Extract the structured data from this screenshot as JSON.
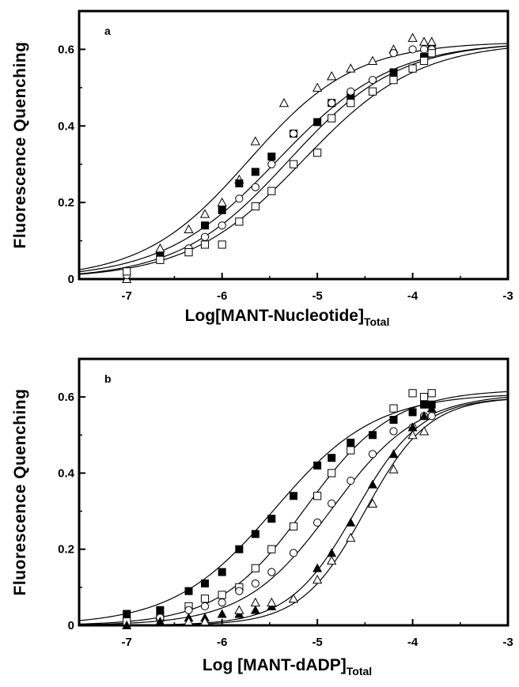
{
  "chart_data": [
    {
      "type": "scatter",
      "panel_label": "a",
      "xlabel": "Log[MANT-Nucleotide]",
      "xlabel_subscript": "Total",
      "ylabel": "Fluorescence Quenching",
      "xlim": [
        -7.5,
        -3
      ],
      "ylim": [
        0,
        0.7
      ],
      "xticks": [
        -7,
        -6,
        -5,
        -4,
        -3
      ],
      "yticks": [
        0,
        0.2,
        0.4,
        0.6
      ],
      "ytick_labels": [
        "0",
        "0.2",
        "0.4",
        "0.6"
      ],
      "grid": false,
      "legend": "none",
      "series": [
        {
          "marker": "open-triangle",
          "x": [
            -7.0,
            -6.65,
            -6.35,
            -6.18,
            -6.0,
            -5.82,
            -5.65,
            -5.35,
            -5.0,
            -4.85,
            -4.65,
            -4.42,
            -4.2,
            -4.0,
            -3.88,
            -3.8
          ],
          "y": [
            0.0,
            0.08,
            0.13,
            0.17,
            0.2,
            0.26,
            0.36,
            0.46,
            0.5,
            0.53,
            0.55,
            0.57,
            0.6,
            0.63,
            0.62,
            0.62
          ],
          "fit": {
            "top": 0.62,
            "log_k50": -5.72,
            "hill": 0.78
          }
        },
        {
          "marker": "filled-square",
          "x": [
            -6.65,
            -6.18,
            -6.0,
            -5.82,
            -5.65,
            -5.48,
            -5.25,
            -5.0,
            -4.85,
            -4.65,
            -4.2,
            -3.88,
            -3.8
          ],
          "y": [
            0.06,
            0.14,
            0.18,
            0.25,
            0.28,
            0.32,
            0.38,
            0.41,
            0.46,
            0.48,
            0.54,
            0.58,
            0.6
          ],
          "fit": {
            "top": 0.62,
            "log_k50": -5.42,
            "hill": 0.72
          }
        },
        {
          "marker": "open-circle",
          "x": [
            -7.0,
            -6.65,
            -6.35,
            -6.18,
            -6.0,
            -5.82,
            -5.65,
            -5.48,
            -5.25,
            -4.85,
            -4.65,
            -4.42,
            -4.2,
            -4.0,
            -3.88,
            -3.8
          ],
          "y": [
            0.01,
            0.05,
            0.08,
            0.11,
            0.14,
            0.21,
            0.24,
            0.3,
            0.38,
            0.46,
            0.49,
            0.52,
            0.59,
            0.6,
            0.6,
            0.6
          ],
          "fit": {
            "top": 0.62,
            "log_k50": -5.3,
            "hill": 0.75
          }
        },
        {
          "marker": "open-square",
          "x": [
            -7.0,
            -6.65,
            -6.35,
            -6.18,
            -6.0,
            -5.82,
            -5.65,
            -5.48,
            -5.25,
            -5.0,
            -4.85,
            -4.65,
            -4.42,
            -4.2,
            -4.0,
            -3.88,
            -3.8
          ],
          "y": [
            0.02,
            0.05,
            0.07,
            0.09,
            0.09,
            0.15,
            0.19,
            0.23,
            0.3,
            0.33,
            0.42,
            0.46,
            0.49,
            0.52,
            0.55,
            0.57,
            0.59
          ],
          "fit": {
            "top": 0.62,
            "log_k50": -5.15,
            "hill": 0.72
          }
        }
      ]
    },
    {
      "type": "scatter",
      "panel_label": "b",
      "xlabel": "Log  [MANT-dADP]",
      "xlabel_subscript": "Total",
      "ylabel": "Fluorescence Quenching",
      "xlim": [
        -7.5,
        -3
      ],
      "ylim": [
        0,
        0.7
      ],
      "xticks": [
        -7,
        -6,
        -5,
        -4,
        -3
      ],
      "yticks": [
        0,
        0.2,
        0.4,
        0.6
      ],
      "ytick_labels": [
        "0",
        "0.2",
        "0.4",
        "0.6"
      ],
      "grid": false,
      "legend": "none",
      "series": [
        {
          "marker": "filled-square",
          "x": [
            -7.0,
            -6.65,
            -6.35,
            -6.18,
            -6.0,
            -5.82,
            -5.65,
            -5.48,
            -5.25,
            -5.0,
            -4.85,
            -4.65,
            -4.42,
            -4.2,
            -4.0,
            -3.88,
            -3.8
          ],
          "y": [
            0.03,
            0.04,
            0.09,
            0.11,
            0.14,
            0.2,
            0.24,
            0.28,
            0.34,
            0.42,
            0.44,
            0.48,
            0.5,
            0.54,
            0.56,
            0.58,
            0.58
          ],
          "fit": {
            "top": 0.61,
            "log_k50": -5.45,
            "hill": 0.82
          }
        },
        {
          "marker": "open-square",
          "x": [
            -7.0,
            -6.65,
            -6.35,
            -6.18,
            -6.0,
            -5.82,
            -5.65,
            -5.48,
            -5.25,
            -5.0,
            -4.85,
            -4.65,
            -4.2,
            -4.0,
            -3.88,
            -3.8
          ],
          "y": [
            0.01,
            0.02,
            0.05,
            0.07,
            0.08,
            0.1,
            0.15,
            0.2,
            0.26,
            0.34,
            0.4,
            0.46,
            0.57,
            0.61,
            0.6,
            0.61
          ],
          "fit": {
            "top": 0.62,
            "log_k50": -5.12,
            "hill": 0.95
          }
        },
        {
          "marker": "open-circle",
          "x": [
            -6.65,
            -6.35,
            -6.18,
            -6.0,
            -5.82,
            -5.65,
            -5.48,
            -5.25,
            -5.0,
            -4.85,
            -4.65,
            -4.42,
            -4.2,
            -4.0,
            -3.88,
            -3.8
          ],
          "y": [
            0.02,
            0.04,
            0.05,
            0.06,
            0.09,
            0.11,
            0.14,
            0.19,
            0.27,
            0.32,
            0.38,
            0.45,
            0.51,
            0.52,
            0.55,
            0.55
          ],
          "fit": {
            "top": 0.61,
            "log_k50": -4.85,
            "hill": 0.95
          }
        },
        {
          "marker": "filled-triangle",
          "x": [
            -7.0,
            -6.65,
            -6.35,
            -6.18,
            -6.0,
            -5.82,
            -5.65,
            -5.48,
            -5.25,
            -5.0,
            -4.85,
            -4.65,
            -4.42,
            -4.2,
            -4.0,
            -3.88,
            -3.8
          ],
          "y": [
            0.0,
            0.01,
            0.02,
            0.02,
            0.03,
            0.03,
            0.04,
            0.05,
            0.07,
            0.15,
            0.19,
            0.27,
            0.37,
            0.45,
            0.52,
            0.55,
            0.57
          ],
          "fit": {
            "top": 0.6,
            "log_k50": -4.6,
            "hill": 1.25
          }
        },
        {
          "marker": "open-triangle",
          "x": [
            -6.35,
            -6.18,
            -5.82,
            -5.65,
            -5.48,
            -5.25,
            -5.0,
            -4.85,
            -4.65,
            -4.42,
            -4.2,
            -4.0,
            -3.88
          ],
          "y": [
            0.01,
            0.01,
            0.04,
            0.06,
            0.06,
            0.07,
            0.12,
            0.17,
            0.23,
            0.32,
            0.41,
            0.5,
            0.51
          ],
          "fit": {
            "top": 0.6,
            "log_k50": -4.5,
            "hill": 1.3
          }
        }
      ]
    }
  ]
}
